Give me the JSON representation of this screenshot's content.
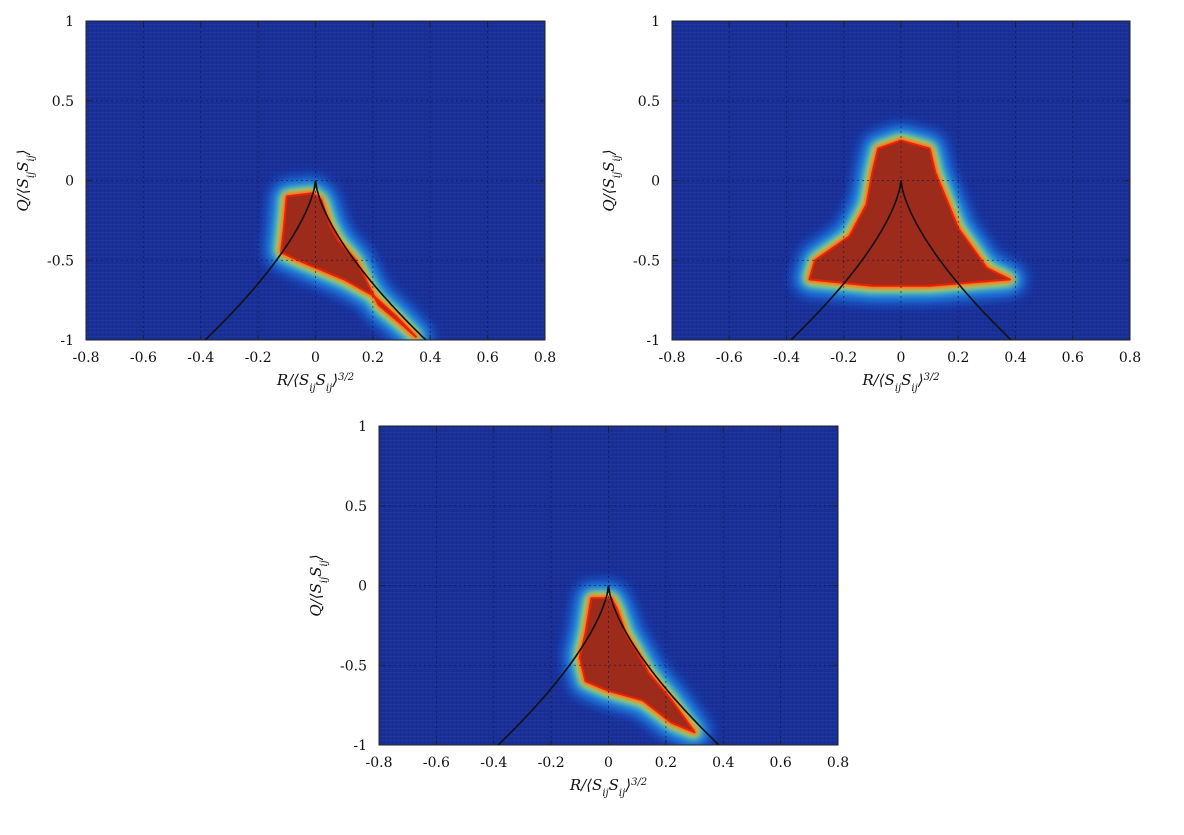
{
  "chart_data": [
    {
      "type": "heatmap",
      "panel": "top-left",
      "xlabel": "R/⟨S_ij S_ij⟩^{3/2}",
      "ylabel": "Q/⟨S_ij S_ij⟩",
      "xlim": [
        -0.8,
        0.8
      ],
      "ylim": [
        -1,
        1
      ],
      "xticks": [
        "-0.8",
        "-0.6",
        "-0.4",
        "-0.2",
        "0",
        "0.2",
        "0.4",
        "0.6",
        "0.8"
      ],
      "yticks": [
        "1",
        "0.5",
        "0",
        "-0.5",
        "-1"
      ],
      "grid": true,
      "colormap": "jet",
      "background_color": "#1a2f96",
      "core_color": "#9c2b1b",
      "core_region": [
        [
          -0.01,
          -0.08
        ],
        [
          -0.1,
          -0.1
        ],
        [
          -0.11,
          -0.3
        ],
        [
          -0.12,
          -0.45
        ],
        [
          -0.06,
          -0.5
        ],
        [
          0.1,
          -0.62
        ],
        [
          0.2,
          -0.72
        ],
        [
          0.28,
          -0.85
        ],
        [
          0.35,
          -0.98
        ],
        [
          0.3,
          -0.9
        ],
        [
          0.22,
          -0.78
        ],
        [
          0.14,
          -0.5
        ],
        [
          0.08,
          -0.38
        ],
        [
          0.05,
          -0.28
        ],
        [
          0.02,
          -0.12
        ]
      ],
      "curve": "Vieillefosse line Q = -(27/4 R^2)^(1/3)"
    },
    {
      "type": "heatmap",
      "panel": "top-right",
      "xlabel": "R/⟨S_ij S_ij⟩^{3/2}",
      "ylabel": "Q/⟨S_ij S_ij⟩",
      "xlim": [
        -0.8,
        0.8
      ],
      "ylim": [
        -1,
        1
      ],
      "xticks": [
        "-0.8",
        "-0.6",
        "-0.4",
        "-0.2",
        "0",
        "0.2",
        "0.4",
        "0.6",
        "0.8"
      ],
      "yticks": [
        "1",
        "0.5",
        "0",
        "-0.5",
        "-1"
      ],
      "grid": true,
      "colormap": "jet",
      "background_color": "#1a2f96",
      "core_color": "#9c2b1b",
      "core_region": [
        [
          -0.08,
          0.2
        ],
        [
          0.0,
          0.25
        ],
        [
          0.1,
          0.2
        ],
        [
          0.12,
          0.05
        ],
        [
          0.2,
          -0.3
        ],
        [
          0.3,
          -0.55
        ],
        [
          0.38,
          -0.62
        ],
        [
          0.1,
          -0.66
        ],
        [
          -0.1,
          -0.66
        ],
        [
          -0.32,
          -0.62
        ],
        [
          -0.3,
          -0.5
        ],
        [
          -0.18,
          -0.35
        ],
        [
          -0.12,
          -0.15
        ],
        [
          -0.1,
          0.05
        ]
      ],
      "curve": "Vieillefosse line Q = -(27/4 R^2)^(1/3)"
    },
    {
      "type": "heatmap",
      "panel": "bottom",
      "xlabel": "R/⟨S_ij S_ij⟩^{3/2}",
      "ylabel": "Q/⟨S_ij S_ij⟩",
      "xlim": [
        -0.8,
        0.8
      ],
      "ylim": [
        -1,
        1
      ],
      "xticks": [
        "-0.8",
        "-0.6",
        "-0.4",
        "-0.2",
        "0",
        "0.2",
        "0.4",
        "0.6",
        "0.8"
      ],
      "yticks": [
        "1",
        "0.5",
        "0",
        "-0.5",
        "-1"
      ],
      "grid": true,
      "colormap": "jet",
      "background_color": "#1a2f96",
      "core_color": "#9c2b1b",
      "core_region": [
        [
          -0.06,
          -0.08
        ],
        [
          0.01,
          -0.08
        ],
        [
          0.03,
          -0.15
        ],
        [
          0.06,
          -0.3
        ],
        [
          0.1,
          -0.42
        ],
        [
          0.14,
          -0.55
        ],
        [
          0.22,
          -0.72
        ],
        [
          0.3,
          -0.92
        ],
        [
          0.22,
          -0.86
        ],
        [
          0.12,
          -0.72
        ],
        [
          0.0,
          -0.66
        ],
        [
          -0.08,
          -0.6
        ],
        [
          -0.1,
          -0.45
        ],
        [
          -0.08,
          -0.3
        ]
      ],
      "curve": "Vieillefosse line Q = -(27/4 R^2)^(1/3)"
    }
  ]
}
